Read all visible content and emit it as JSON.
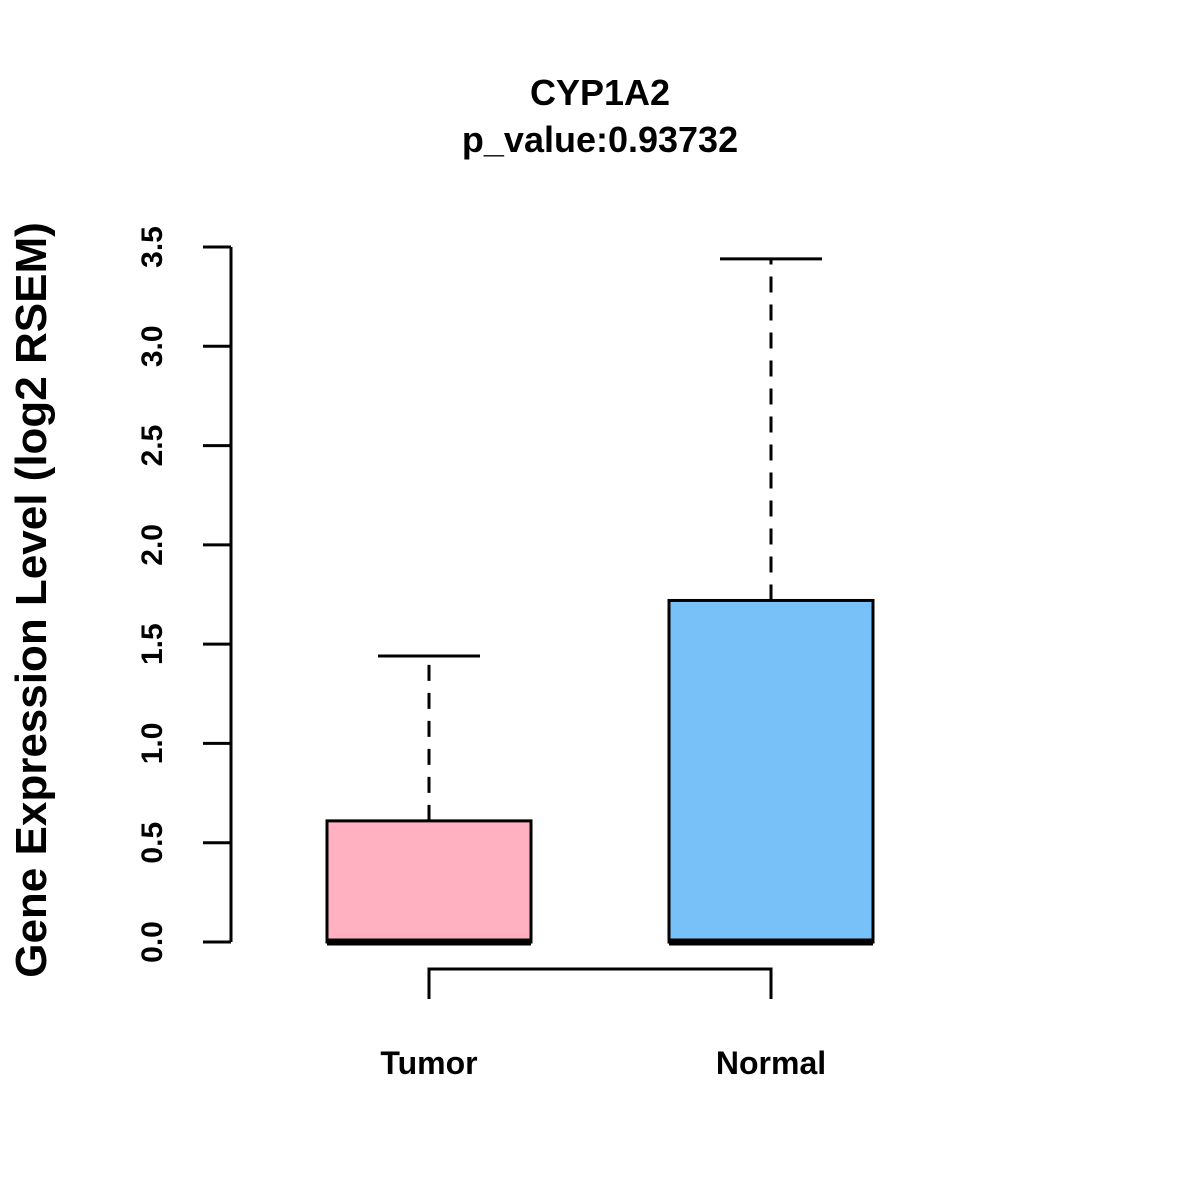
{
  "chart_data": {
    "type": "box",
    "title": "CYP1A2",
    "subtitle": "p_value:0.93732",
    "xlabel": "",
    "ylabel": "Gene Expression Level (log2 RSEM)",
    "ylim": [
      0,
      3.5
    ],
    "yticks": [
      0.0,
      0.5,
      1.0,
      1.5,
      2.0,
      2.5,
      3.0,
      3.5
    ],
    "ytick_labels": [
      "0.0",
      "0.5",
      "1.0",
      "1.5",
      "2.0",
      "2.5",
      "3.0",
      "3.5"
    ],
    "categories": [
      "Tumor",
      "Normal"
    ],
    "boxes": [
      {
        "name": "Tumor",
        "color": "#FFB1C2",
        "min": 0.0,
        "q1": 0.0,
        "median": 0.0,
        "q3": 0.61,
        "max": 1.44
      },
      {
        "name": "Normal",
        "color": "#77C1F8",
        "min": 0.0,
        "q1": 0.0,
        "median": 0.0,
        "q3": 1.72,
        "max": 3.44
      }
    ],
    "comparison": [
      "Tumor",
      "Normal"
    ],
    "grid": false
  }
}
